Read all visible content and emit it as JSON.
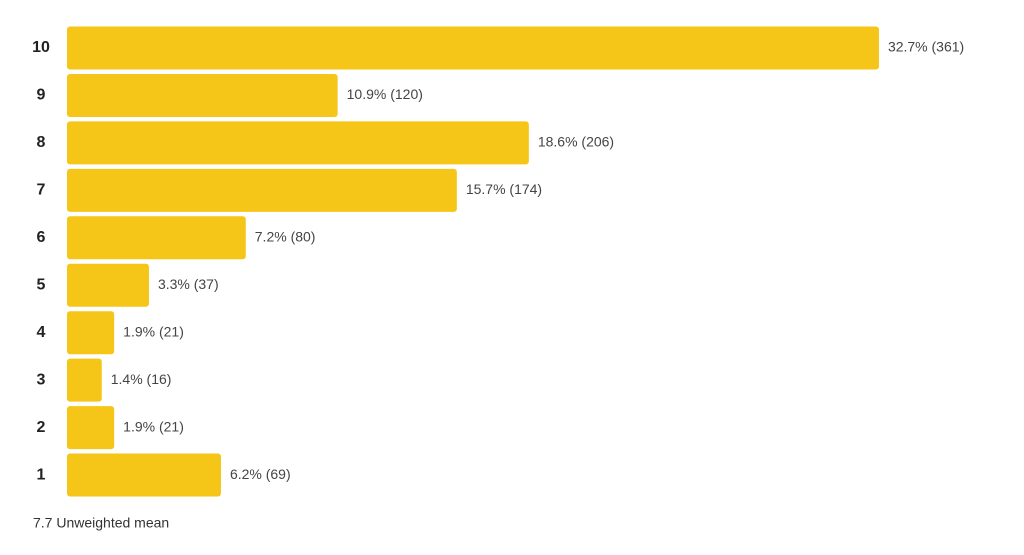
{
  "chart_data": {
    "type": "bar",
    "orientation": "horizontal",
    "categories": [
      "10",
      "9",
      "8",
      "7",
      "6",
      "5",
      "4",
      "3",
      "2",
      "1"
    ],
    "values": [
      32.7,
      10.9,
      18.6,
      15.7,
      7.2,
      3.3,
      1.9,
      1.4,
      1.9,
      6.2
    ],
    "value_labels": [
      "32.7% (361)",
      "10.9% (120)",
      "18.6% (206)",
      "15.7% (174)",
      "7.2% (80)",
      "3.3% (37)",
      "1.9% (21)",
      "1.4% (16)",
      "1.9% (21)",
      "6.2% (69)"
    ],
    "color": "#f5c518",
    "footnote": "7.7 Unweighted mean"
  }
}
